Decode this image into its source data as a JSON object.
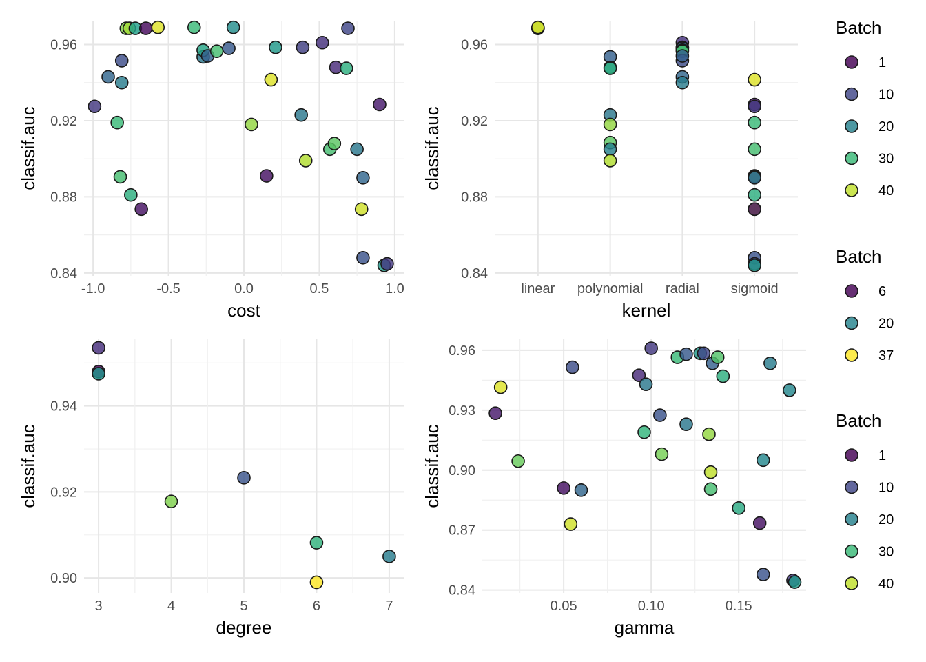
{
  "colors": {
    "viridis_low": "#440154",
    "viridis_mid": "#21908C",
    "viridis_high": "#FDE725",
    "grid": "#e6e6e6",
    "text": "#4d4d4d"
  },
  "legends": [
    {
      "title": "Batch",
      "items": [
        {
          "label": "1",
          "value": 1
        },
        {
          "label": "10",
          "value": 10
        },
        {
          "label": "20",
          "value": 20
        },
        {
          "label": "30",
          "value": 30
        },
        {
          "label": "40",
          "value": 40
        }
      ]
    },
    {
      "title": "Batch",
      "items": [
        {
          "label": "6",
          "value": 6
        },
        {
          "label": "20",
          "value": 20
        },
        {
          "label": "37",
          "value": 37
        }
      ]
    },
    {
      "title": "Batch",
      "items": [
        {
          "label": "1",
          "value": 1
        },
        {
          "label": "10",
          "value": 10
        },
        {
          "label": "20",
          "value": 20
        },
        {
          "label": "30",
          "value": 30
        },
        {
          "label": "40",
          "value": 40
        }
      ]
    }
  ],
  "chart_data": [
    {
      "type": "scatter",
      "xlabel": "cost",
      "ylabel": "classif.auc",
      "xlim": [
        -1.06,
        1.06
      ],
      "ylim": [
        0.8385,
        0.9725
      ],
      "x_ticks": [
        -1.0,
        -0.5,
        0.0,
        0.5,
        1.0
      ],
      "x_tick_labels": [
        "-1.0",
        "-0.5",
        "0.0",
        "0.5",
        "1.0"
      ],
      "y_ticks": [
        0.84,
        0.88,
        0.92,
        0.96
      ],
      "y_tick_labels": [
        "0.84",
        "0.88",
        "0.92",
        "0.96"
      ],
      "color_range": [
        1,
        44
      ],
      "points": [
        {
          "x": -0.99,
          "y": 0.9275,
          "batch": 8
        },
        {
          "x": -0.9,
          "y": 0.943,
          "batch": 15
        },
        {
          "x": -0.84,
          "y": 0.919,
          "batch": 30
        },
        {
          "x": -0.82,
          "y": 0.8905,
          "batch": 31
        },
        {
          "x": -0.81,
          "y": 0.9515,
          "batch": 11
        },
        {
          "x": -0.81,
          "y": 0.94,
          "batch": 19
        },
        {
          "x": -0.78,
          "y": 0.9685,
          "batch": 36
        },
        {
          "x": -0.76,
          "y": 0.9685,
          "batch": 38
        },
        {
          "x": -0.75,
          "y": 0.881,
          "batch": 28
        },
        {
          "x": -0.72,
          "y": 0.9685,
          "batch": 25
        },
        {
          "x": -0.68,
          "y": 0.8735,
          "batch": 3
        },
        {
          "x": -0.65,
          "y": 0.9685,
          "batch": 2
        },
        {
          "x": -0.57,
          "y": 0.969,
          "batch": 42
        },
        {
          "x": -0.33,
          "y": 0.969,
          "batch": 30
        },
        {
          "x": -0.27,
          "y": 0.9535,
          "batch": 18
        },
        {
          "x": -0.27,
          "y": 0.957,
          "batch": 26
        },
        {
          "x": -0.24,
          "y": 0.954,
          "batch": 14
        },
        {
          "x": -0.18,
          "y": 0.9565,
          "batch": 31
        },
        {
          "x": -0.1,
          "y": 0.958,
          "batch": 13
        },
        {
          "x": -0.07,
          "y": 0.969,
          "batch": 22
        },
        {
          "x": 0.05,
          "y": 0.918,
          "batch": 37
        },
        {
          "x": 0.15,
          "y": 0.891,
          "batch": 3
        },
        {
          "x": 0.18,
          "y": 0.9415,
          "batch": 42
        },
        {
          "x": 0.21,
          "y": 0.9585,
          "batch": 24
        },
        {
          "x": 0.38,
          "y": 0.923,
          "batch": 18
        },
        {
          "x": 0.39,
          "y": 0.9585,
          "batch": 9
        },
        {
          "x": 0.41,
          "y": 0.899,
          "batch": 39
        },
        {
          "x": 0.52,
          "y": 0.961,
          "batch": 7
        },
        {
          "x": 0.57,
          "y": 0.905,
          "batch": 31
        },
        {
          "x": 0.6,
          "y": 0.908,
          "batch": 33
        },
        {
          "x": 0.61,
          "y": 0.948,
          "batch": 6
        },
        {
          "x": 0.68,
          "y": 0.9475,
          "batch": 28
        },
        {
          "x": 0.69,
          "y": 0.9685,
          "batch": 10
        },
        {
          "x": 0.75,
          "y": 0.905,
          "batch": 18
        },
        {
          "x": 0.78,
          "y": 0.8735,
          "batch": 41
        },
        {
          "x": 0.79,
          "y": 0.89,
          "batch": 15
        },
        {
          "x": 0.79,
          "y": 0.848,
          "batch": 12
        },
        {
          "x": 0.9,
          "y": 0.9285,
          "batch": 4
        },
        {
          "x": 0.93,
          "y": 0.844,
          "batch": 24
        },
        {
          "x": 0.95,
          "y": 0.8448,
          "batch": 8
        }
      ]
    },
    {
      "type": "scatter",
      "xlabel": "kernel",
      "ylabel": "classif.auc",
      "x_categories": [
        "linear",
        "polynomial",
        "radial",
        "sigmoid"
      ],
      "ylim": [
        0.8385,
        0.9725
      ],
      "y_ticks": [
        0.84,
        0.88,
        0.92,
        0.96
      ],
      "y_tick_labels": [
        "0.84",
        "0.88",
        "0.92",
        "0.96"
      ],
      "color_range": [
        1,
        44
      ],
      "points": [
        {
          "x": "linear",
          "y": 0.9685,
          "batch": 2
        },
        {
          "x": "linear",
          "y": 0.9685,
          "batch": 22
        },
        {
          "x": "linear",
          "y": 0.9688,
          "batch": 36
        },
        {
          "x": "linear",
          "y": 0.969,
          "batch": 42
        },
        {
          "x": "polynomial",
          "y": 0.9535,
          "batch": 14
        },
        {
          "x": "polynomial",
          "y": 0.948,
          "batch": 20
        },
        {
          "x": "polynomial",
          "y": 0.9475,
          "batch": 28
        },
        {
          "x": "polynomial",
          "y": 0.923,
          "batch": 18
        },
        {
          "x": "polynomial",
          "y": 0.918,
          "batch": 37
        },
        {
          "x": "polynomial",
          "y": 0.9085,
          "batch": 33
        },
        {
          "x": "polynomial",
          "y": 0.905,
          "batch": 20
        },
        {
          "x": "polynomial",
          "y": 0.899,
          "batch": 39
        },
        {
          "x": "radial",
          "y": 0.961,
          "batch": 7
        },
        {
          "x": "radial",
          "y": 0.9585,
          "batch": 9
        },
        {
          "x": "radial",
          "y": 0.9585,
          "batch": 24
        },
        {
          "x": "radial",
          "y": 0.958,
          "batch": 13
        },
        {
          "x": "radial",
          "y": 0.957,
          "batch": 30
        },
        {
          "x": "radial",
          "y": 0.9565,
          "batch": 31
        },
        {
          "x": "radial",
          "y": 0.9515,
          "batch": 11
        },
        {
          "x": "radial",
          "y": 0.954,
          "batch": 14
        },
        {
          "x": "radial",
          "y": 0.943,
          "batch": 15
        },
        {
          "x": "radial",
          "y": 0.94,
          "batch": 19
        },
        {
          "x": "sigmoid",
          "y": 0.9415,
          "batch": 42
        },
        {
          "x": "sigmoid",
          "y": 0.9285,
          "batch": 4
        },
        {
          "x": "sigmoid",
          "y": 0.9275,
          "batch": 8
        },
        {
          "x": "sigmoid",
          "y": 0.919,
          "batch": 30
        },
        {
          "x": "sigmoid",
          "y": 0.905,
          "batch": 31
        },
        {
          "x": "sigmoid",
          "y": 0.891,
          "batch": 3
        },
        {
          "x": "sigmoid",
          "y": 0.8905,
          "batch": 31
        },
        {
          "x": "sigmoid",
          "y": 0.89,
          "batch": 15
        },
        {
          "x": "sigmoid",
          "y": 0.881,
          "batch": 28
        },
        {
          "x": "sigmoid",
          "y": 0.8735,
          "batch": 41
        },
        {
          "x": "sigmoid",
          "y": 0.8735,
          "batch": 3
        },
        {
          "x": "sigmoid",
          "y": 0.848,
          "batch": 12
        },
        {
          "x": "sigmoid",
          "y": 0.8448,
          "batch": 8
        },
        {
          "x": "sigmoid",
          "y": 0.844,
          "batch": 24
        }
      ]
    },
    {
      "type": "scatter",
      "xlabel": "degree",
      "ylabel": "classif.auc",
      "xlim": [
        2.8,
        7.2
      ],
      "ylim": [
        0.8965,
        0.9555
      ],
      "x_ticks": [
        3,
        4,
        5,
        6,
        7
      ],
      "x_tick_labels": [
        "3",
        "4",
        "5",
        "6",
        "7"
      ],
      "y_ticks": [
        0.9,
        0.92,
        0.94
      ],
      "y_tick_labels": [
        "0.90",
        "0.92",
        "0.94"
      ],
      "color_range": [
        6,
        37
      ],
      "points": [
        {
          "x": 3,
          "y": 0.9535,
          "batch": 10
        },
        {
          "x": 3,
          "y": 0.948,
          "batch": 6
        },
        {
          "x": 3,
          "y": 0.9475,
          "batch": 22
        },
        {
          "x": 4,
          "y": 0.9178,
          "batch": 31
        },
        {
          "x": 5,
          "y": 0.9233,
          "batch": 14
        },
        {
          "x": 6,
          "y": 0.9082,
          "batch": 26
        },
        {
          "x": 6,
          "y": 0.899,
          "batch": 37
        },
        {
          "x": 7,
          "y": 0.905,
          "batch": 19
        }
      ]
    },
    {
      "type": "scatter",
      "xlabel": "gamma",
      "ylabel": "classif.auc",
      "xlim": [
        0.0035,
        0.1885
      ],
      "ylim": [
        0.8385,
        0.9655
      ],
      "x_ticks": [
        0.05,
        0.1,
        0.15
      ],
      "x_tick_labels": [
        "0.05",
        "0.10",
        "0.15"
      ],
      "y_ticks": [
        0.84,
        0.87,
        0.9,
        0.93,
        0.96
      ],
      "y_tick_labels": [
        "0.84",
        "0.87",
        "0.90",
        "0.93",
        "0.96"
      ],
      "color_range": [
        1,
        44
      ],
      "points": [
        {
          "x": 0.011,
          "y": 0.9285,
          "batch": 4
        },
        {
          "x": 0.014,
          "y": 0.9415,
          "batch": 42
        },
        {
          "x": 0.024,
          "y": 0.9045,
          "batch": 34
        },
        {
          "x": 0.05,
          "y": 0.891,
          "batch": 3
        },
        {
          "x": 0.054,
          "y": 0.873,
          "batch": 41
        },
        {
          "x": 0.055,
          "y": 0.9515,
          "batch": 11
        },
        {
          "x": 0.06,
          "y": 0.89,
          "batch": 15
        },
        {
          "x": 0.093,
          "y": 0.9475,
          "batch": 6
        },
        {
          "x": 0.096,
          "y": 0.919,
          "batch": 29
        },
        {
          "x": 0.097,
          "y": 0.943,
          "batch": 18
        },
        {
          "x": 0.1,
          "y": 0.961,
          "batch": 8
        },
        {
          "x": 0.105,
          "y": 0.9275,
          "batch": 12
        },
        {
          "x": 0.106,
          "y": 0.908,
          "batch": 35
        },
        {
          "x": 0.115,
          "y": 0.9565,
          "batch": 30
        },
        {
          "x": 0.12,
          "y": 0.958,
          "batch": 13
        },
        {
          "x": 0.12,
          "y": 0.923,
          "batch": 18
        },
        {
          "x": 0.128,
          "y": 0.9585,
          "batch": 24
        },
        {
          "x": 0.13,
          "y": 0.9585,
          "batch": 10
        },
        {
          "x": 0.133,
          "y": 0.918,
          "batch": 37
        },
        {
          "x": 0.134,
          "y": 0.899,
          "batch": 40
        },
        {
          "x": 0.134,
          "y": 0.8905,
          "batch": 31
        },
        {
          "x": 0.135,
          "y": 0.9535,
          "batch": 14
        },
        {
          "x": 0.138,
          "y": 0.9565,
          "batch": 32
        },
        {
          "x": 0.141,
          "y": 0.947,
          "batch": 28
        },
        {
          "x": 0.15,
          "y": 0.881,
          "batch": 27
        },
        {
          "x": 0.162,
          "y": 0.8735,
          "batch": 3
        },
        {
          "x": 0.164,
          "y": 0.905,
          "batch": 21
        },
        {
          "x": 0.164,
          "y": 0.8478,
          "batch": 12
        },
        {
          "x": 0.168,
          "y": 0.9535,
          "batch": 19
        },
        {
          "x": 0.179,
          "y": 0.94,
          "batch": 21
        },
        {
          "x": 0.181,
          "y": 0.8448,
          "batch": 8
        },
        {
          "x": 0.182,
          "y": 0.844,
          "batch": 24
        }
      ]
    }
  ]
}
